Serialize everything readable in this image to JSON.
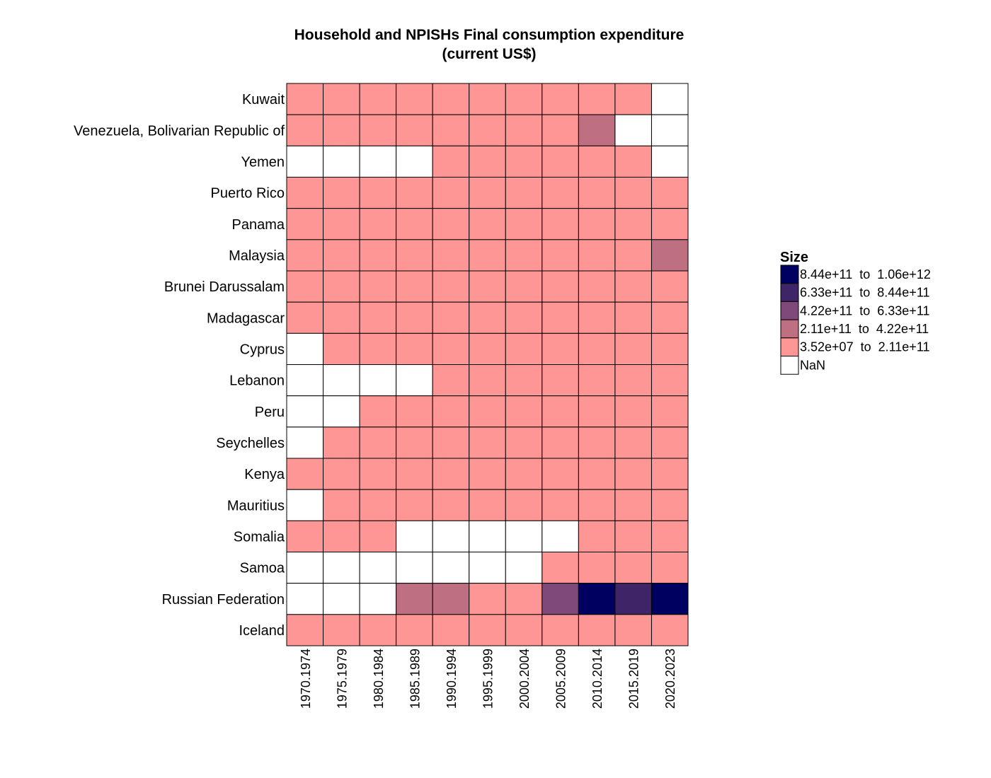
{
  "chart_data": {
    "type": "heatmap",
    "title_lines": [
      "Household and NPISHs Final consumption expenditure",
      "(current US$)"
    ],
    "x_categories": [
      "1970.1974",
      "1975.1979",
      "1980.1984",
      "1985.1989",
      "1990.1994",
      "1995.1999",
      "2000.2004",
      "2005.2009",
      "2010.2014",
      "2015.2019",
      "2020.2023"
    ],
    "y_categories": [
      "Kuwait",
      "Venezuela, Bolivarian Republic of",
      "Yemen",
      "Puerto Rico",
      "Panama",
      "Malaysia",
      "Brunei Darussalam",
      "Madagascar",
      "Cyprus",
      "Lebanon",
      "Peru",
      "Seychelles",
      "Kenya",
      "Mauritius",
      "Somalia",
      "Samoa",
      "Russian Federation",
      "Iceland"
    ],
    "legend": {
      "title": "Size",
      "bins": [
        {
          "label": "8.44e+11  to  1.06e+12",
          "color": "#000060"
        },
        {
          "label": "6.33e+11  to  8.44e+11",
          "color": "#3f2468"
        },
        {
          "label": "4.22e+11  to  6.33e+11",
          "color": "#7f4a7a"
        },
        {
          "label": "2.11e+11  to  4.22e+11",
          "color": "#bf6f82"
        },
        {
          "label": "3.52e+07  to  2.11e+11",
          "color": "#ff9696"
        },
        {
          "label": "NaN",
          "color": "#ffffff"
        }
      ]
    },
    "bin_index_matrix": [
      [
        4,
        4,
        4,
        4,
        4,
        4,
        4,
        4,
        4,
        4,
        5
      ],
      [
        4,
        4,
        4,
        4,
        4,
        4,
        4,
        4,
        3,
        5,
        5
      ],
      [
        5,
        5,
        5,
        5,
        4,
        4,
        4,
        4,
        4,
        4,
        5
      ],
      [
        4,
        4,
        4,
        4,
        4,
        4,
        4,
        4,
        4,
        4,
        4
      ],
      [
        4,
        4,
        4,
        4,
        4,
        4,
        4,
        4,
        4,
        4,
        4
      ],
      [
        4,
        4,
        4,
        4,
        4,
        4,
        4,
        4,
        4,
        4,
        3
      ],
      [
        4,
        4,
        4,
        4,
        4,
        4,
        4,
        4,
        4,
        4,
        4
      ],
      [
        4,
        4,
        4,
        4,
        4,
        4,
        4,
        4,
        4,
        4,
        4
      ],
      [
        5,
        4,
        4,
        4,
        4,
        4,
        4,
        4,
        4,
        4,
        4
      ],
      [
        5,
        5,
        5,
        5,
        4,
        4,
        4,
        4,
        4,
        4,
        4
      ],
      [
        5,
        5,
        4,
        4,
        4,
        4,
        4,
        4,
        4,
        4,
        4
      ],
      [
        5,
        4,
        4,
        4,
        4,
        4,
        4,
        4,
        4,
        4,
        4
      ],
      [
        4,
        4,
        4,
        4,
        4,
        4,
        4,
        4,
        4,
        4,
        4
      ],
      [
        5,
        4,
        4,
        4,
        4,
        4,
        4,
        4,
        4,
        4,
        4
      ],
      [
        4,
        4,
        4,
        5,
        5,
        5,
        5,
        5,
        4,
        4,
        4
      ],
      [
        5,
        5,
        5,
        5,
        5,
        5,
        5,
        4,
        4,
        4,
        4
      ],
      [
        5,
        5,
        5,
        3,
        3,
        4,
        4,
        2,
        0,
        1,
        0
      ],
      [
        4,
        4,
        4,
        4,
        4,
        4,
        4,
        4,
        4,
        4,
        4
      ]
    ]
  }
}
